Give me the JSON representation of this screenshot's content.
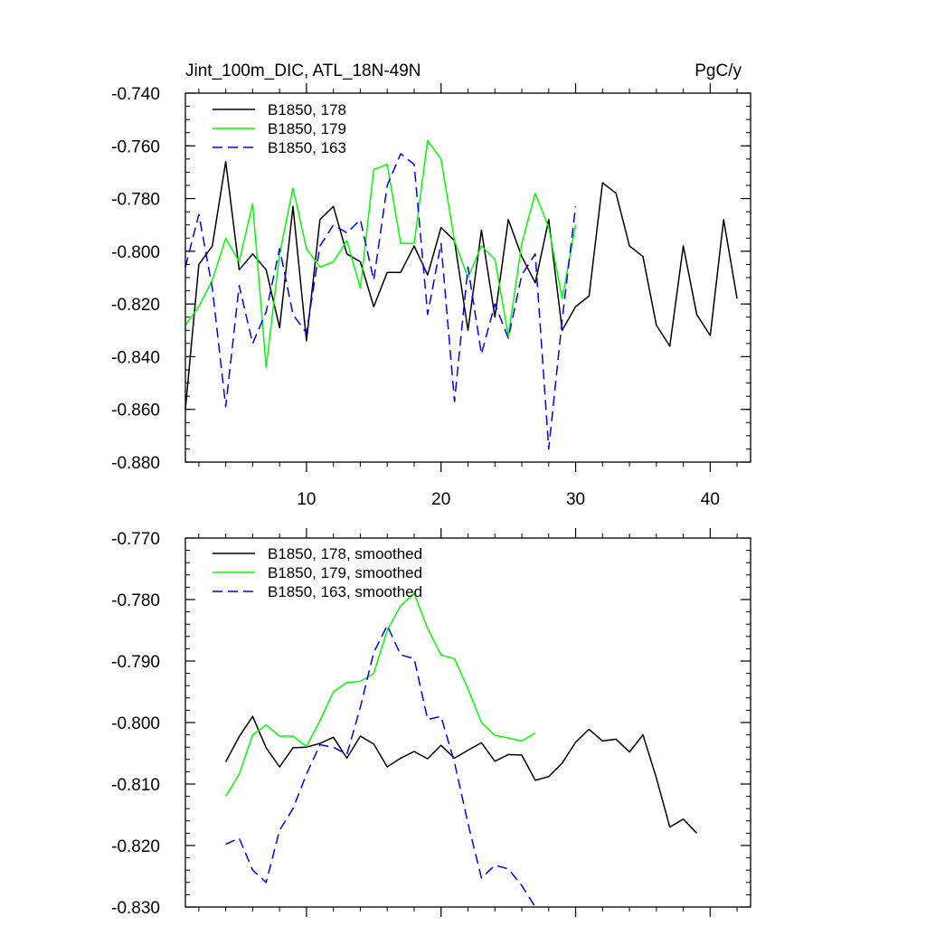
{
  "chart_data": [
    {
      "type": "line",
      "title_left": "Jint_100m_DIC, ATL_18N-49N",
      "title_right": "PgC/y",
      "xlabel": "",
      "ylabel": "",
      "xlim": [
        1,
        43
      ],
      "ylim": [
        -0.88,
        -0.74
      ],
      "x_ticks": [
        10,
        20,
        30,
        40
      ],
      "x_tick_labels": [
        "10",
        "20",
        "30",
        "40"
      ],
      "y_ticks": [
        -0.74,
        -0.76,
        -0.78,
        -0.8,
        -0.82,
        -0.84,
        -0.86,
        -0.88
      ],
      "y_tick_labels": [
        "-0.740",
        "-0.760",
        "-0.780",
        "-0.800",
        "-0.820",
        "-0.840",
        "-0.860",
        "-0.880"
      ],
      "legend_position": "top-left",
      "series": [
        {
          "name": "B1850, 178",
          "color": "#000000",
          "dash": "solid",
          "x": [
            1,
            2,
            3,
            4,
            5,
            6,
            7,
            8,
            9,
            10,
            11,
            12,
            13,
            14,
            15,
            16,
            17,
            18,
            19,
            20,
            21,
            22,
            23,
            24,
            25,
            26,
            27,
            28,
            29,
            30,
            31,
            32,
            33,
            34,
            35,
            36,
            37,
            38,
            39,
            40,
            41,
            42
          ],
          "values": [
            -0.86,
            -0.805,
            -0.798,
            -0.766,
            -0.807,
            -0.801,
            -0.807,
            -0.829,
            -0.783,
            -0.834,
            -0.788,
            -0.783,
            -0.801,
            -0.804,
            -0.821,
            -0.808,
            -0.808,
            -0.798,
            -0.809,
            -0.791,
            -0.796,
            -0.83,
            -0.792,
            -0.825,
            -0.788,
            -0.802,
            -0.812,
            -0.788,
            -0.83,
            -0.821,
            -0.817,
            -0.774,
            -0.778,
            -0.798,
            -0.802,
            -0.828,
            -0.836,
            -0.798,
            -0.824,
            -0.832,
            -0.788,
            -0.818
          ]
        },
        {
          "name": "B1850, 179",
          "color": "#00ff00",
          "dash": "solid",
          "x": [
            1,
            2,
            3,
            4,
            5,
            6,
            7,
            8,
            9,
            10,
            11,
            12,
            13,
            14,
            15,
            16,
            17,
            18,
            19,
            20,
            21,
            22,
            23,
            24,
            25,
            26,
            27,
            28,
            29,
            30
          ],
          "values": [
            -0.828,
            -0.821,
            -0.811,
            -0.795,
            -0.804,
            -0.782,
            -0.844,
            -0.801,
            -0.776,
            -0.799,
            -0.806,
            -0.804,
            -0.796,
            -0.814,
            -0.769,
            -0.767,
            -0.797,
            -0.797,
            -0.758,
            -0.765,
            -0.796,
            -0.81,
            -0.798,
            -0.803,
            -0.832,
            -0.797,
            -0.778,
            -0.791,
            -0.818,
            -0.79
          ]
        },
        {
          "name": "B1850, 163",
          "color": "#0000ff",
          "dash": "dashed",
          "x": [
            1,
            2,
            3,
            4,
            5,
            6,
            7,
            8,
            9,
            10,
            11,
            12,
            13,
            14,
            15,
            16,
            17,
            18,
            19,
            20,
            21,
            22,
            23,
            24,
            25,
            26,
            27,
            28,
            29,
            30
          ],
          "values": [
            -0.806,
            -0.786,
            -0.814,
            -0.859,
            -0.813,
            -0.835,
            -0.823,
            -0.799,
            -0.824,
            -0.831,
            -0.798,
            -0.79,
            -0.793,
            -0.788,
            -0.811,
            -0.775,
            -0.763,
            -0.767,
            -0.824,
            -0.797,
            -0.857,
            -0.806,
            -0.839,
            -0.82,
            -0.833,
            -0.809,
            -0.801,
            -0.875,
            -0.826,
            -0.783
          ]
        }
      ]
    },
    {
      "type": "line",
      "xlabel": "",
      "ylabel": "",
      "xlim": [
        1,
        43
      ],
      "ylim": [
        -0.83,
        -0.77
      ],
      "x_ticks": [
        10,
        20,
        30,
        40
      ],
      "x_tick_labels": [],
      "y_ticks": [
        -0.77,
        -0.78,
        -0.79,
        -0.8,
        -0.81,
        -0.82,
        -0.83
      ],
      "y_tick_labels": [
        "-0.770",
        "-0.780",
        "-0.790",
        "-0.800",
        "-0.810",
        "-0.820",
        "-0.830"
      ],
      "legend_position": "top-left",
      "series": [
        {
          "name": "B1850, 178, smoothed",
          "color": "#000000",
          "dash": "solid",
          "x": [
            4,
            5,
            6,
            7,
            8,
            9,
            10,
            11,
            12,
            13,
            14,
            15,
            16,
            17,
            18,
            19,
            20,
            21,
            22,
            23,
            24,
            25,
            26,
            27,
            28,
            29,
            30,
            31,
            32,
            33,
            34,
            35,
            36,
            37,
            38,
            39
          ],
          "values": [
            -0.8064,
            -0.8023,
            -0.799,
            -0.8041,
            -0.8072,
            -0.8041,
            -0.804,
            -0.8034,
            -0.8024,
            -0.8058,
            -0.8022,
            -0.8035,
            -0.8072,
            -0.8058,
            -0.8047,
            -0.8059,
            -0.8037,
            -0.8058,
            -0.8045,
            -0.8033,
            -0.8063,
            -0.8052,
            -0.8053,
            -0.8094,
            -0.8088,
            -0.8066,
            -0.8032,
            -0.8011,
            -0.803,
            -0.8027,
            -0.8048,
            -0.802,
            -0.809,
            -0.817,
            -0.8157,
            -0.818
          ]
        },
        {
          "name": "B1850, 179, smoothed",
          "color": "#00ff00",
          "dash": "solid",
          "x": [
            4,
            5,
            6,
            7,
            8,
            9,
            10,
            11,
            12,
            13,
            14,
            15,
            16,
            17,
            18,
            19,
            20,
            21,
            22,
            23,
            24,
            25,
            26,
            27
          ],
          "values": [
            -0.812,
            -0.8084,
            -0.802,
            -0.8004,
            -0.8022,
            -0.8022,
            -0.8039,
            -0.7997,
            -0.795,
            -0.7935,
            -0.7933,
            -0.792,
            -0.785,
            -0.781,
            -0.779,
            -0.7847,
            -0.789,
            -0.7896,
            -0.7945,
            -0.8,
            -0.8021,
            -0.8025,
            -0.803,
            -0.8017
          ]
        },
        {
          "name": "B1850, 163, smoothed",
          "color": "#0000ff",
          "dash": "dashed",
          "x": [
            4,
            5,
            6,
            7,
            8,
            9,
            10,
            11,
            12,
            13,
            14,
            15,
            16,
            17,
            18,
            19,
            20,
            21,
            22,
            23,
            24,
            25,
            26,
            27
          ],
          "values": [
            -0.8198,
            -0.8188,
            -0.824,
            -0.826,
            -0.8175,
            -0.814,
            -0.8084,
            -0.8036,
            -0.804,
            -0.8052,
            -0.7975,
            -0.7886,
            -0.7842,
            -0.789,
            -0.7896,
            -0.7995,
            -0.799,
            -0.8065,
            -0.8164,
            -0.8253,
            -0.8232,
            -0.8238,
            -0.8265,
            -0.83
          ]
        }
      ]
    }
  ]
}
